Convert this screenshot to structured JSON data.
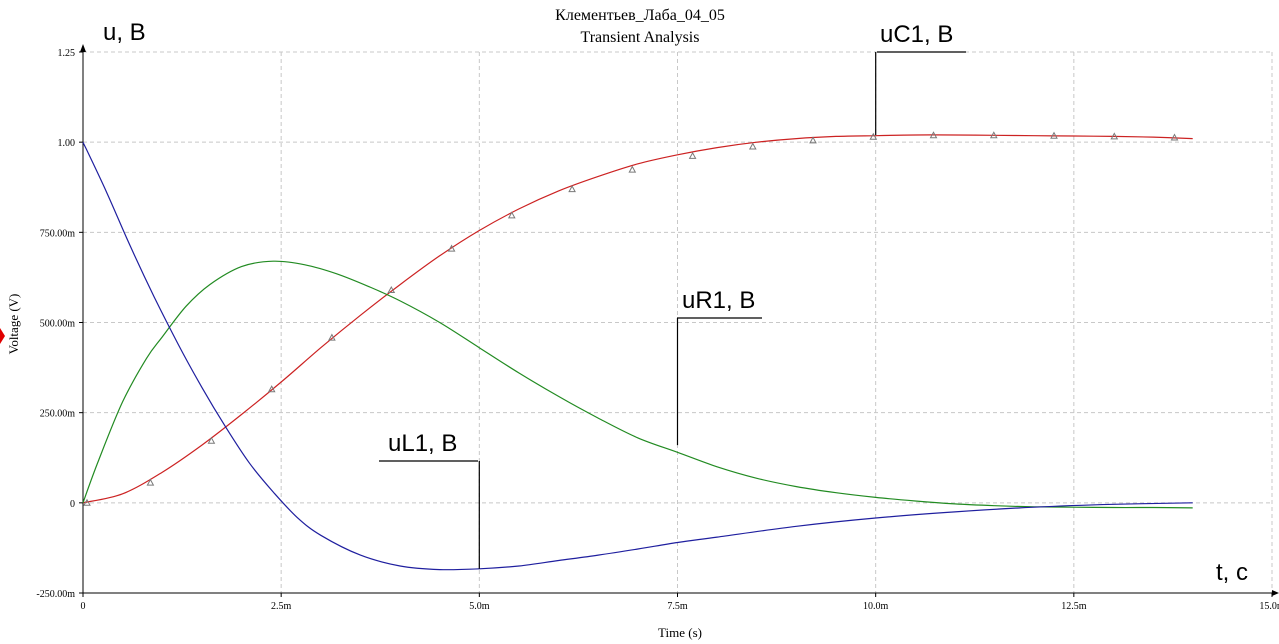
{
  "chart_data": {
    "type": "line",
    "title": "Клементьев_Лаба_04_05",
    "subtitle": "Transient Analysis",
    "xlabel": "Time (s)",
    "ylabel": "Voltage (V)",
    "xlim": [
      0,
      0.015
    ],
    "ylim": [
      -0.25,
      1.25
    ],
    "grid": true,
    "x_ticks": [
      {
        "value": 0,
        "label": "0"
      },
      {
        "value": 0.0025,
        "label": "2.5m"
      },
      {
        "value": 0.005,
        "label": "5.0m"
      },
      {
        "value": 0.0075,
        "label": "7.5m"
      },
      {
        "value": 0.01,
        "label": "10.0m"
      },
      {
        "value": 0.0125,
        "label": "12.5m"
      },
      {
        "value": 0.015,
        "label": "15.0m"
      }
    ],
    "y_ticks": [
      {
        "value": -0.25,
        "label": "-250.00m"
      },
      {
        "value": 0,
        "label": "0"
      },
      {
        "value": 0.25,
        "label": "250.00m"
      },
      {
        "value": 0.5,
        "label": "500.00m"
      },
      {
        "value": 0.75,
        "label": "750.00m"
      },
      {
        "value": 1.0,
        "label": "1.00"
      },
      {
        "value": 1.25,
        "label": "1.25"
      }
    ],
    "annotations": {
      "y_axis_name": "u, B",
      "x_axis_name": "t, c"
    },
    "series": [
      {
        "name": "uC1, B",
        "color": "#cc2222",
        "marker": "triangle",
        "x": [
          0,
          0.0005,
          0.001,
          0.0015,
          0.002,
          0.0025,
          0.003,
          0.0035,
          0.004,
          0.0045,
          0.005,
          0.0055,
          0.006,
          0.0065,
          0.007,
          0.0075,
          0.008,
          0.0085,
          0.009,
          0.0095,
          0.01,
          0.0105,
          0.011,
          0.0115,
          0.012,
          0.0125,
          0.013,
          0.0135,
          0.014
        ],
        "values": [
          0,
          0.025,
          0.085,
          0.16,
          0.245,
          0.335,
          0.43,
          0.52,
          0.605,
          0.685,
          0.755,
          0.815,
          0.865,
          0.905,
          0.94,
          0.965,
          0.985,
          1.0,
          1.01,
          1.016,
          1.018,
          1.02,
          1.02,
          1.019,
          1.018,
          1.017,
          1.016,
          1.014,
          1.01
        ],
        "marker_x": [
          5e-05,
          0.00085,
          0.00162,
          0.00238,
          0.00314,
          0.00389,
          0.00465,
          0.00541,
          0.00617,
          0.00693,
          0.00769,
          0.00845,
          0.00921,
          0.00997,
          0.01073,
          0.01149,
          0.01225,
          0.01301,
          0.01377
        ],
        "marker_values": [
          0,
          0.056,
          0.172,
          0.315,
          0.458,
          0.59,
          0.705,
          0.797,
          0.87,
          0.924,
          0.962,
          0.988,
          1.005,
          1.015,
          1.019,
          1.019,
          1.018,
          1.016,
          1.013
        ],
        "label_anchor": {
          "x": 0.01,
          "y": 1.02
        }
      },
      {
        "name": "uR1, B",
        "color": "#228b22",
        "marker": "none",
        "x": [
          0,
          0.0002,
          0.0005,
          0.0008,
          0.001,
          0.0013,
          0.0016,
          0.002,
          0.0024,
          0.0028,
          0.0032,
          0.0036,
          0.004,
          0.0045,
          0.005,
          0.0055,
          0.006,
          0.0065,
          0.007,
          0.0075,
          0.008,
          0.0085,
          0.009,
          0.0095,
          0.01,
          0.0105,
          0.011,
          0.0115,
          0.012,
          0.0125,
          0.013,
          0.0135,
          0.014
        ],
        "values": [
          0,
          0.12,
          0.28,
          0.4,
          0.46,
          0.545,
          0.605,
          0.655,
          0.67,
          0.66,
          0.635,
          0.6,
          0.56,
          0.5,
          0.43,
          0.36,
          0.295,
          0.235,
          0.18,
          0.14,
          0.1,
          0.068,
          0.045,
          0.028,
          0.015,
          0.005,
          -0.003,
          -0.008,
          -0.011,
          -0.012,
          -0.013,
          -0.013,
          -0.014
        ],
        "label_anchor": {
          "x": 0.0075,
          "y": 0.16
        }
      },
      {
        "name": "uL1, B",
        "color": "#1f1f9f",
        "marker": "none",
        "x": [
          0,
          0.0003,
          0.0006,
          0.0009,
          0.0012,
          0.0015,
          0.0018,
          0.0021,
          0.0024,
          0.0027,
          0.003,
          0.0035,
          0.004,
          0.0045,
          0.005,
          0.0055,
          0.006,
          0.0065,
          0.007,
          0.0075,
          0.008,
          0.009,
          0.01,
          0.011,
          0.012,
          0.013,
          0.014
        ],
        "values": [
          1.0,
          0.86,
          0.71,
          0.57,
          0.44,
          0.32,
          0.21,
          0.11,
          0.03,
          -0.04,
          -0.09,
          -0.145,
          -0.175,
          -0.185,
          -0.183,
          -0.175,
          -0.16,
          -0.145,
          -0.128,
          -0.11,
          -0.095,
          -0.065,
          -0.042,
          -0.025,
          -0.012,
          -0.004,
          0.0
        ],
        "label_anchor": {
          "x": 0.005,
          "y": -0.183
        }
      }
    ]
  }
}
